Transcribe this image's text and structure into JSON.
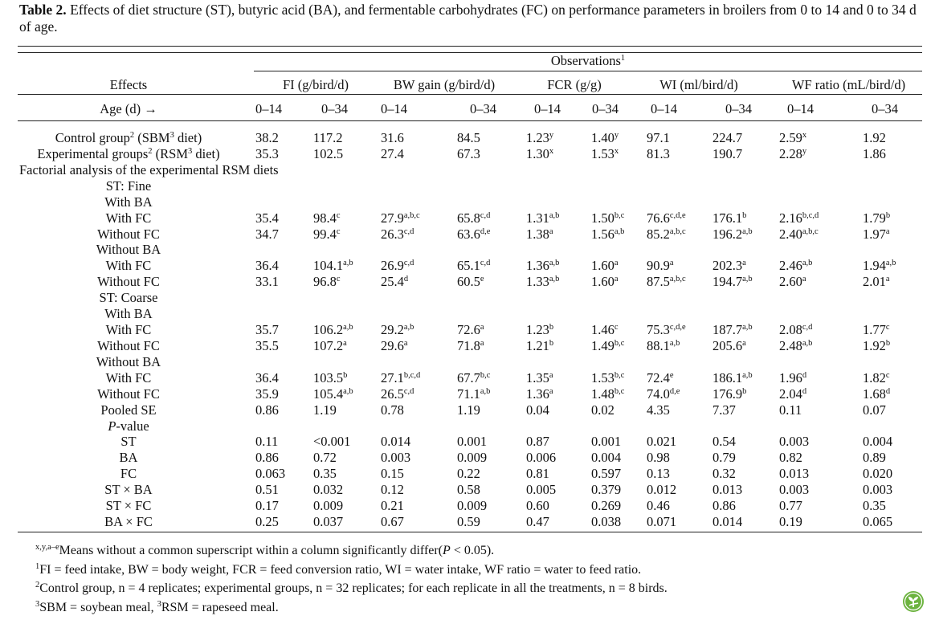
{
  "caption": {
    "label": "Table 2.",
    "text": " Effects of diet structure (ST), butyric acid (BA), and fermentable carbohydrates (FC) on performance parameters in broilers from 0 to 14 and 0 to 34 d of age."
  },
  "header": {
    "group": [
      {
        "t": "Observations"
      },
      {
        "sup": "1"
      }
    ],
    "effects": "Effects",
    "age": "Age (d) →",
    "columns": [
      "FI (g/bird/d)",
      "BW gain (g/bird/d)",
      "FCR (g/g)",
      "WI (ml/bird/d)",
      "WF ratio (mL/bird/d)"
    ],
    "ages": [
      "0–14",
      "0–34",
      "0–14",
      "0–34",
      "0–14",
      "0–34",
      "0–14",
      "0–34",
      "0–14",
      "0–34"
    ]
  },
  "rows": [
    {
      "label": [
        {
          "t": "Control group"
        },
        {
          "sup": "2"
        },
        {
          "t": " (SBM"
        },
        {
          "sup": "3"
        },
        {
          "t": " diet)"
        }
      ],
      "values": [
        [
          "38.2",
          ""
        ],
        [
          "117.2",
          ""
        ],
        [
          "31.6",
          ""
        ],
        [
          "84.5",
          ""
        ],
        [
          "1.23",
          "y"
        ],
        [
          "1.40",
          "y"
        ],
        [
          "97.1",
          ""
        ],
        [
          "224.7",
          ""
        ],
        [
          "2.59",
          "x"
        ],
        [
          "1.92",
          ""
        ]
      ]
    },
    {
      "label": [
        {
          "t": "Experimental groups"
        },
        {
          "sup": "2"
        },
        {
          "t": " (RSM"
        },
        {
          "sup": "3"
        },
        {
          "t": " diet)"
        }
      ],
      "values": [
        [
          "35.3",
          ""
        ],
        [
          "102.5",
          ""
        ],
        [
          "27.4",
          ""
        ],
        [
          "67.3",
          ""
        ],
        [
          "1.30",
          "x"
        ],
        [
          "1.53",
          "x"
        ],
        [
          "81.3",
          ""
        ],
        [
          "190.7",
          ""
        ],
        [
          "2.28",
          "y"
        ],
        [
          "1.86",
          ""
        ]
      ]
    },
    {
      "label": [
        {
          "t": "Factorial analysis of the experimental RSM diets"
        }
      ],
      "left": true,
      "values": []
    },
    {
      "label": [
        {
          "t": "ST: Fine"
        }
      ],
      "values": []
    },
    {
      "label": [
        {
          "t": "With BA"
        }
      ],
      "values": []
    },
    {
      "label": [
        {
          "t": "With FC"
        }
      ],
      "values": [
        [
          "35.4",
          ""
        ],
        [
          "98.4",
          "c"
        ],
        [
          "27.9",
          "a,b,c"
        ],
        [
          "65.8",
          "c,d"
        ],
        [
          "1.31",
          "a,b"
        ],
        [
          "1.50",
          "b,c"
        ],
        [
          "76.6",
          "c,d,e"
        ],
        [
          "176.1",
          "b"
        ],
        [
          "2.16",
          "b,c,d"
        ],
        [
          "1.79",
          "b"
        ]
      ]
    },
    {
      "label": [
        {
          "t": "Without FC"
        }
      ],
      "values": [
        [
          "34.7",
          ""
        ],
        [
          "99.4",
          "c"
        ],
        [
          "26.3",
          "c,d"
        ],
        [
          "63.6",
          "d,e"
        ],
        [
          "1.38",
          "a"
        ],
        [
          "1.56",
          "a,b"
        ],
        [
          "85.2",
          "a,b,c"
        ],
        [
          "196.2",
          "a,b"
        ],
        [
          "2.40",
          "a,b,c"
        ],
        [
          "1.97",
          "a"
        ]
      ]
    },
    {
      "label": [
        {
          "t": "Without BA"
        }
      ],
      "values": []
    },
    {
      "label": [
        {
          "t": "With FC"
        }
      ],
      "values": [
        [
          "36.4",
          ""
        ],
        [
          "104.1",
          "a,b"
        ],
        [
          "26.9",
          "c,d"
        ],
        [
          "65.1",
          "c,d"
        ],
        [
          "1.36",
          "a,b"
        ],
        [
          "1.60",
          "a"
        ],
        [
          "90.9",
          "a"
        ],
        [
          "202.3",
          "a"
        ],
        [
          "2.46",
          "a,b"
        ],
        [
          "1.94",
          "a,b"
        ]
      ]
    },
    {
      "label": [
        {
          "t": "Without FC"
        }
      ],
      "values": [
        [
          "33.1",
          ""
        ],
        [
          "96.8",
          "c"
        ],
        [
          "25.4",
          "d"
        ],
        [
          "60.5",
          "e"
        ],
        [
          "1.33",
          "a,b"
        ],
        [
          "1.60",
          "a"
        ],
        [
          "87.5",
          "a,b,c"
        ],
        [
          "194.7",
          "a,b"
        ],
        [
          "2.60",
          "a"
        ],
        [
          "2.01",
          "a"
        ]
      ]
    },
    {
      "label": [
        {
          "t": "ST: Coarse"
        }
      ],
      "values": []
    },
    {
      "label": [
        {
          "t": "With BA"
        }
      ],
      "values": []
    },
    {
      "label": [
        {
          "t": "With FC"
        }
      ],
      "values": [
        [
          "35.7",
          ""
        ],
        [
          "106.2",
          "a,b"
        ],
        [
          "29.2",
          "a,b"
        ],
        [
          "72.6",
          "a"
        ],
        [
          "1.23",
          "b"
        ],
        [
          "1.46",
          "c"
        ],
        [
          "75.3",
          "c,d,e"
        ],
        [
          "187.7",
          "a,b"
        ],
        [
          "2.08",
          "c,d"
        ],
        [
          "1.77",
          "c"
        ]
      ]
    },
    {
      "label": [
        {
          "t": "Without FC"
        }
      ],
      "values": [
        [
          "35.5",
          ""
        ],
        [
          "107.2",
          "a"
        ],
        [
          "29.6",
          "a"
        ],
        [
          "71.8",
          "a"
        ],
        [
          "1.21",
          "b"
        ],
        [
          "1.49",
          "b,c"
        ],
        [
          "88.1",
          "a,b"
        ],
        [
          "205.6",
          "a"
        ],
        [
          "2.48",
          "a,b"
        ],
        [
          "1.92",
          "b"
        ]
      ]
    },
    {
      "label": [
        {
          "t": "Without BA"
        }
      ],
      "values": []
    },
    {
      "label": [
        {
          "t": "With FC"
        }
      ],
      "values": [
        [
          "36.4",
          ""
        ],
        [
          "103.5",
          "b"
        ],
        [
          "27.1",
          "b,c,d"
        ],
        [
          "67.7",
          "b,c"
        ],
        [
          "1.35",
          "a"
        ],
        [
          "1.53",
          "b,c"
        ],
        [
          "72.4",
          "e"
        ],
        [
          "186.1",
          "a,b"
        ],
        [
          "1.96",
          "d"
        ],
        [
          "1.82",
          "c"
        ]
      ]
    },
    {
      "label": [
        {
          "t": "Without FC"
        }
      ],
      "values": [
        [
          "35.9",
          ""
        ],
        [
          "105.4",
          "a,b"
        ],
        [
          "26.5",
          "c,d"
        ],
        [
          "71.1",
          "a,b"
        ],
        [
          "1.36",
          "a"
        ],
        [
          "1.48",
          "b,c"
        ],
        [
          "74.0",
          "d,e"
        ],
        [
          "176.9",
          "b"
        ],
        [
          "2.04",
          "d"
        ],
        [
          "1.68",
          "d"
        ]
      ]
    },
    {
      "label": [
        {
          "t": "Pooled SE"
        }
      ],
      "values": [
        [
          "0.86",
          ""
        ],
        [
          "1.19",
          ""
        ],
        [
          "0.78",
          ""
        ],
        [
          "1.19",
          ""
        ],
        [
          "0.04",
          ""
        ],
        [
          "0.02",
          ""
        ],
        [
          "4.35",
          ""
        ],
        [
          "7.37",
          ""
        ],
        [
          "0.11",
          ""
        ],
        [
          "0.07",
          ""
        ]
      ]
    },
    {
      "label": [
        {
          "i": "P"
        },
        {
          "t": "-value"
        }
      ],
      "values": []
    },
    {
      "label": [
        {
          "t": "ST"
        }
      ],
      "values": [
        [
          "0.11",
          ""
        ],
        [
          "<0.001",
          ""
        ],
        [
          "0.014",
          ""
        ],
        [
          "0.001",
          ""
        ],
        [
          "0.87",
          ""
        ],
        [
          "0.001",
          ""
        ],
        [
          "0.021",
          ""
        ],
        [
          "0.54",
          ""
        ],
        [
          "0.003",
          ""
        ],
        [
          "0.004",
          ""
        ]
      ]
    },
    {
      "label": [
        {
          "t": "BA"
        }
      ],
      "values": [
        [
          "0.86",
          ""
        ],
        [
          "0.72",
          ""
        ],
        [
          "0.003",
          ""
        ],
        [
          "0.009",
          ""
        ],
        [
          "0.006",
          ""
        ],
        [
          "0.004",
          ""
        ],
        [
          "0.98",
          ""
        ],
        [
          "0.79",
          ""
        ],
        [
          "0.82",
          ""
        ],
        [
          "0.89",
          ""
        ]
      ]
    },
    {
      "label": [
        {
          "t": "FC"
        }
      ],
      "values": [
        [
          "0.063",
          ""
        ],
        [
          "0.35",
          ""
        ],
        [
          "0.15",
          ""
        ],
        [
          "0.22",
          ""
        ],
        [
          "0.81",
          ""
        ],
        [
          "0.597",
          ""
        ],
        [
          "0.13",
          ""
        ],
        [
          "0.32",
          ""
        ],
        [
          "0.013",
          ""
        ],
        [
          "0.020",
          ""
        ]
      ]
    },
    {
      "label": [
        {
          "t": "ST × BA"
        }
      ],
      "values": [
        [
          "0.51",
          ""
        ],
        [
          "0.032",
          ""
        ],
        [
          "0.12",
          ""
        ],
        [
          "0.58",
          ""
        ],
        [
          "0.005",
          ""
        ],
        [
          "0.379",
          ""
        ],
        [
          "0.012",
          ""
        ],
        [
          "0.013",
          ""
        ],
        [
          "0.003",
          ""
        ],
        [
          "0.003",
          ""
        ]
      ]
    },
    {
      "label": [
        {
          "t": "ST × FC"
        }
      ],
      "values": [
        [
          "0.17",
          ""
        ],
        [
          "0.009",
          ""
        ],
        [
          "0.21",
          ""
        ],
        [
          "0.009",
          ""
        ],
        [
          "0.60",
          ""
        ],
        [
          "0.269",
          ""
        ],
        [
          "0.46",
          ""
        ],
        [
          "0.86",
          ""
        ],
        [
          "0.77",
          ""
        ],
        [
          "0.35",
          ""
        ]
      ]
    },
    {
      "label": [
        {
          "t": "BA × FC"
        }
      ],
      "values": [
        [
          "0.25",
          ""
        ],
        [
          "0.037",
          ""
        ],
        [
          "0.67",
          ""
        ],
        [
          "0.59",
          ""
        ],
        [
          "0.47",
          ""
        ],
        [
          "0.038",
          ""
        ],
        [
          "0.071",
          ""
        ],
        [
          "0.014",
          ""
        ],
        [
          "0.19",
          ""
        ],
        [
          "0.065",
          ""
        ]
      ]
    }
  ],
  "footnotes": [
    [
      {
        "sup": "x,y,a–e"
      },
      {
        "t": "Means without a common superscript within a column significantly differ("
      },
      {
        "i": "P"
      },
      {
        "t": " < 0.05)."
      }
    ],
    [
      {
        "sup": "1"
      },
      {
        "t": "FI = feed intake, BW = body weight, FCR = feed conversion ratio, WI = water intake, WF ratio = water to feed ratio."
      }
    ],
    [
      {
        "sup": "2"
      },
      {
        "t": "Control group, n = 4 replicates; experimental groups, n = 32 replicates; for each replicate in all the treatments, n = 8 birds."
      }
    ],
    [
      {
        "sup": "3"
      },
      {
        "t": "SBM = soybean meal, "
      },
      {
        "sup": "3"
      },
      {
        "t": "RSM = rapeseed meal."
      }
    ]
  ],
  "badge": {
    "icon": "plant-logo-icon",
    "color": "#6cb33f"
  }
}
